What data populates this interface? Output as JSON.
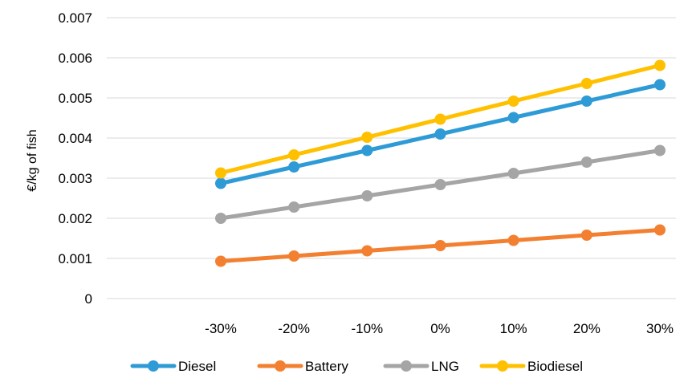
{
  "chart_data": {
    "type": "line",
    "title": "",
    "xlabel": "",
    "ylabel": "€/kg of fish",
    "categories": [
      "-30%",
      "-20%",
      "-10%",
      "0%",
      "10%",
      "20%",
      "30%"
    ],
    "ylim": [
      0,
      0.007
    ],
    "yticks": [
      0,
      0.001,
      0.002,
      0.003,
      0.004,
      0.005,
      0.006,
      0.007
    ],
    "ytick_labels": [
      "0",
      "0.001",
      "0.002",
      "0.003",
      "0.004",
      "0.005",
      "0.006",
      "0.007"
    ],
    "grid": "horizontal",
    "legend_position": "bottom",
    "series": [
      {
        "name": "Diesel",
        "color": "#2E9BD6",
        "values": [
          0.00287,
          0.00328,
          0.00369,
          0.0041,
          0.00451,
          0.00492,
          0.00533
        ]
      },
      {
        "name": "Battery",
        "color": "#F28030",
        "values": [
          0.00093,
          0.00106,
          0.00119,
          0.00132,
          0.00145,
          0.00158,
          0.00171
        ]
      },
      {
        "name": "LNG",
        "color": "#A5A5A5",
        "values": [
          0.002,
          0.00228,
          0.00256,
          0.00284,
          0.00312,
          0.0034,
          0.00369
        ]
      },
      {
        "name": "Biodiesel",
        "color": "#FFC000",
        "values": [
          0.00313,
          0.00358,
          0.00402,
          0.00447,
          0.00492,
          0.00536,
          0.00581
        ]
      }
    ]
  }
}
